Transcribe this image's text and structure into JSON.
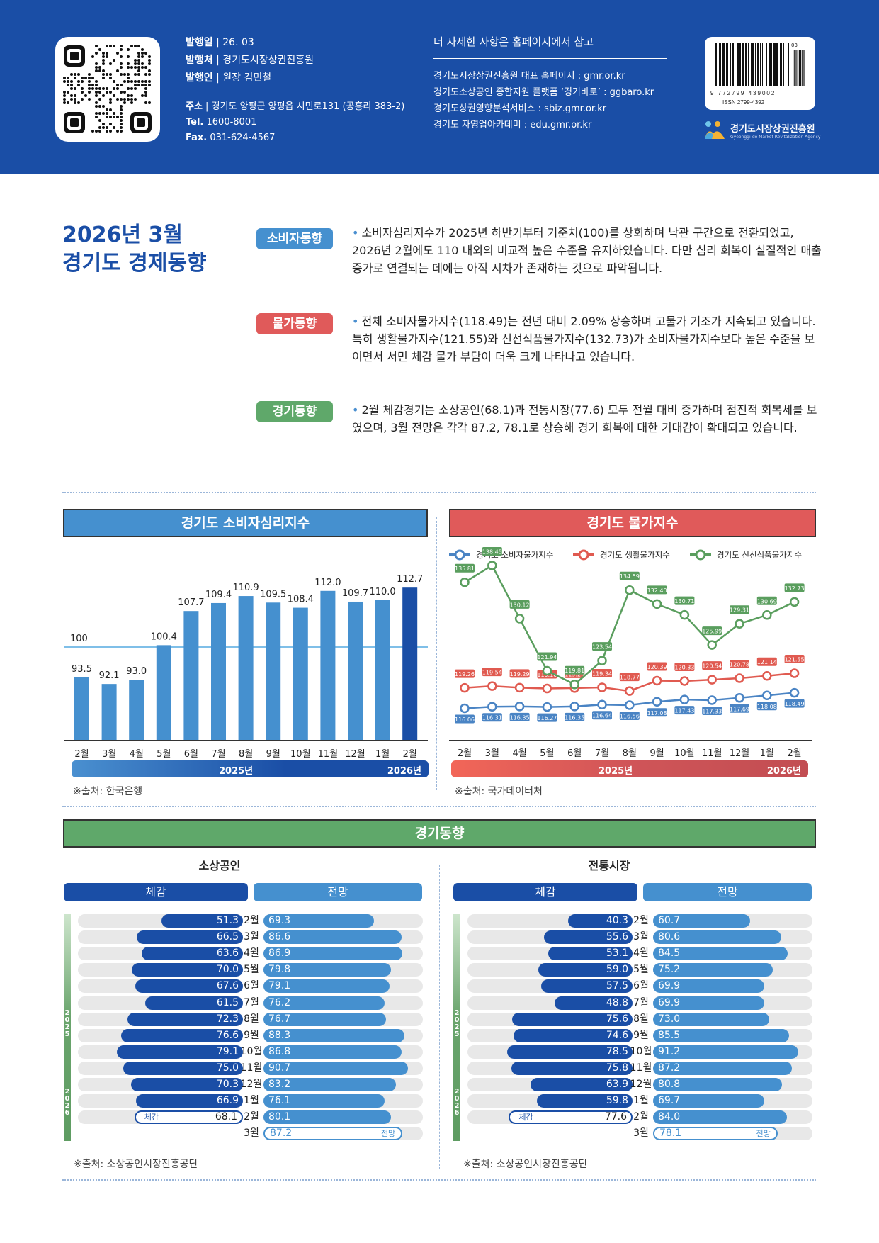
{
  "header": {
    "issue_date_label": "발행일",
    "issue_date": "26. 03",
    "publisher_label": "발행처",
    "publisher": "경기도시장상권진흥원",
    "issuer_label": "발행인",
    "issuer": "원장 김민철",
    "address_label": "주소",
    "address": "경기도 양평군 양평읍 시민로131 (공흥리 383-2)",
    "tel_label": "Tel.",
    "tel": "1600-8001",
    "fax_label": "Fax.",
    "fax": "031-624-4567",
    "ref_title": "더 자세한 사항은 홈페이지에서 참고",
    "ref_links": [
      "경기도시장상권진흥원 대표 홈페이지 : gmr.or.kr",
      "경기도소상공인 종합지원 플랫폼 ‘경기바로’ : ggbaro.kr",
      "경기도상권영향분석서비스 : sbiz.gmr.or.kr",
      "경기도 자영업아카데미 : edu.gmr.or.kr"
    ],
    "barcode_number": "9 772799 439002",
    "barcode_issue": "03",
    "issn": "ISSN 2799-4392",
    "logo_name": "경기도시장상권진흥원",
    "logo_eng": "Gyeonggi-do Market Revitalization Agency"
  },
  "summary": {
    "title_line1": "2026년 3월",
    "title_line2": "경기도 경제동향",
    "topics": [
      {
        "badge": "소비자동향",
        "color": "#4590cf",
        "text": "소비자심리지수가 2025년 하반기부터 기준치(100)를 상회하며 낙관 구간으로 전환되었고, 2026년 2월에도 110 내외의 비교적 높은 수준을 유지하였습니다. 다만 심리 회복이 실질적인 매출 증가로 연결되는 데에는 아직 시차가 존재하는 것으로 파악됩니다."
      },
      {
        "badge": "물가동향",
        "color": "#e05a5a",
        "text": "전체 소비자물가지수(118.49)는 전년 대비 2.09% 상승하며 고물가 기조가 지속되고 있습니다. 특히 생활물가지수(121.55)와 신선식품물가지수(132.73)가 소비자물가지수보다 높은 수준을 보이면서 서민 체감 물가 부담이 더욱 크게 나타나고 있습니다."
      },
      {
        "badge": "경기동향",
        "color": "#5fa86a",
        "text": "2월 체감경기는 소상공인(68.1)과 전통시장(77.6) 모두 전월 대비 증가하며 점진적 회복세를 보였으며, 3월 전망은 각각 87.2, 78.1로 상승해 경기 회복에 대한 기대감이 확대되고 있습니다."
      }
    ]
  },
  "chart_data": [
    {
      "type": "bar",
      "title": "경기도 소비자심리지수",
      "categories": [
        "2월",
        "3월",
        "4월",
        "5월",
        "6월",
        "7월",
        "8월",
        "9월",
        "10월",
        "11월",
        "12월",
        "1월",
        "2월"
      ],
      "values": [
        93.5,
        92.1,
        93.0,
        100.4,
        107.7,
        109.4,
        110.9,
        109.5,
        108.4,
        112.0,
        109.7,
        110.0,
        112.7
      ],
      "reference_line": {
        "value": 100,
        "label": "100"
      },
      "highlight_last": true,
      "ylim": [
        80,
        115
      ],
      "year_labels": [
        "2025년",
        "2026년"
      ],
      "source": "※출처: 한국은행",
      "colors": {
        "bar": "#4590cf",
        "highlight": "#1a4ea6",
        "ref": "#7fbfe8"
      }
    },
    {
      "type": "line",
      "title": "경기도 물가지수",
      "categories": [
        "2월",
        "3월",
        "4월",
        "5월",
        "6월",
        "7월",
        "8월",
        "9월",
        "10월",
        "11월",
        "12월",
        "1월",
        "2월"
      ],
      "series": [
        {
          "name": "경기도 소비자물가지수",
          "color": "#4a84c4",
          "values": [
            116.06,
            116.31,
            116.35,
            116.27,
            116.35,
            116.64,
            116.56,
            117.08,
            117.43,
            117.33,
            117.69,
            118.08,
            118.49
          ]
        },
        {
          "name": "경기도 생활물가지수",
          "color": "#e05a50",
          "values": [
            119.26,
            119.54,
            119.29,
            119.16,
            119.24,
            119.34,
            118.77,
            120.39,
            120.33,
            120.54,
            120.78,
            121.14,
            121.55
          ]
        },
        {
          "name": "경기도 신선식품물가지수",
          "color": "#5a9e5e",
          "values": [
            135.81,
            138.45,
            130.12,
            121.94,
            119.81,
            123.54,
            134.59,
            132.4,
            130.71,
            125.99,
            129.31,
            130.69,
            132.73
          ]
        }
      ],
      "legend": "top",
      "ylim": [
        112,
        142
      ],
      "year_labels": [
        "2025년",
        "2026년"
      ],
      "source": "※출처: 국가데이터처"
    },
    {
      "type": "bar",
      "title": "소상공인",
      "orientation": "horizontal-butterfly",
      "categories": [
        "2월",
        "3월",
        "4월",
        "5월",
        "6월",
        "7월",
        "8월",
        "9월",
        "10월",
        "11월",
        "12월",
        "1월",
        "2월",
        "3월"
      ],
      "series": [
        {
          "name": "체감",
          "values": [
            51.3,
            66.5,
            63.6,
            70.0,
            67.6,
            61.5,
            72.3,
            76.6,
            79.1,
            75.0,
            70.3,
            66.9,
            68.1,
            null
          ]
        },
        {
          "name": "전망",
          "values": [
            69.3,
            86.6,
            86.9,
            79.8,
            79.1,
            76.2,
            76.7,
            88.3,
            86.8,
            90.7,
            83.2,
            76.1,
            80.1,
            87.2
          ]
        }
      ],
      "xlim": [
        0,
        100
      ],
      "year_labels": [
        "2025",
        "2026"
      ],
      "source": "※출처: 소상공인시장진흥공단"
    },
    {
      "type": "bar",
      "title": "전통시장",
      "orientation": "horizontal-butterfly",
      "categories": [
        "2월",
        "3월",
        "4월",
        "5월",
        "6월",
        "7월",
        "8월",
        "9월",
        "10월",
        "11월",
        "12월",
        "1월",
        "2월",
        "3월"
      ],
      "series": [
        {
          "name": "체감",
          "values": [
            40.3,
            55.6,
            53.1,
            59.0,
            57.5,
            48.8,
            75.6,
            74.6,
            78.5,
            75.8,
            63.9,
            59.8,
            77.6,
            null
          ]
        },
        {
          "name": "전망",
          "values": [
            60.7,
            80.6,
            84.5,
            75.2,
            69.9,
            69.9,
            73.0,
            85.5,
            91.2,
            87.2,
            80.8,
            69.7,
            84.0,
            78.1
          ]
        }
      ],
      "xlim": [
        0,
        100
      ],
      "year_labels": [
        "2025",
        "2026"
      ],
      "source": "※출처: 소상공인시장진흥공단"
    }
  ],
  "business": {
    "section_title": "경기동향",
    "col_feel": "체감",
    "col_outlook": "전망",
    "feel_tag": "체감",
    "outlook_tag": "전망"
  }
}
